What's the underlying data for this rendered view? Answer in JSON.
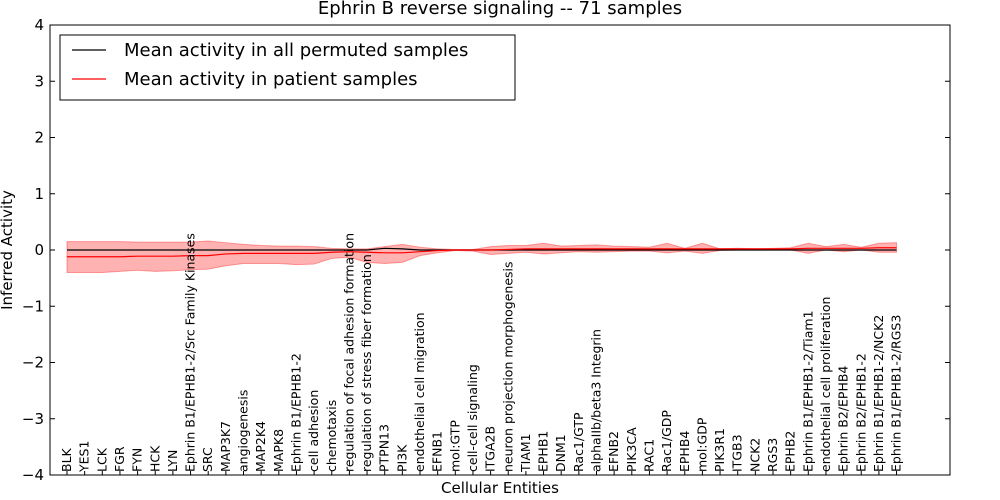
{
  "chart_data": {
    "type": "line",
    "title": "Ephrin B reverse signaling -- 71 samples",
    "xlabel": "Cellular Entities",
    "ylabel": "Inferred Activity",
    "ylim": [
      -4,
      4
    ],
    "yticks": [
      -4,
      -3,
      -2,
      -1,
      0,
      1,
      2,
      3,
      4
    ],
    "legend_position": "top-left",
    "grid": false,
    "categories": [
      "BLK",
      "YES1",
      "LCK",
      "FGR",
      "FYN",
      "HCK",
      "LYN",
      "Ephrin B1/EPHB1-2/Src Family Kinases",
      "SRC",
      "MAP3K7",
      "angiogenesis",
      "MAP2K4",
      "MAPK8",
      "Ephrin B1/EPHB1-2",
      "cell adhesion",
      "chemotaxis",
      "regulation of focal adhesion formation",
      "regulation of stress fiber formation",
      "PTPN13",
      "PI3K",
      "endothelial cell migration",
      "EFNB1",
      "mol:GTP",
      "cell-cell signaling",
      "ITGA2B",
      "neuron projection morphogenesis",
      "TIAM1",
      "EPHB1",
      "DNM1",
      "Rac1/GTP",
      "alphaIIb/beta3 Integrin",
      "EFNB2",
      "PIK3CA",
      "RAC1",
      "Rac1/GDP",
      "EPHB4",
      "mol:GDP",
      "PIK3R1",
      "ITGB3",
      "NCK2",
      "RGS3",
      "EPHB2",
      "Ephrin B1/EPHB1-2/Tiam1",
      "endothelial cell proliferation",
      "Ephrin B2/EPHB4",
      "Ephrin B2/EPHB1-2",
      "Ephrin B1/EPHB1-2/NCK2",
      "Ephrin B1/EPHB1-2/RGS3"
    ],
    "series": [
      {
        "name": "Mean activity in all permuted samples",
        "color": "#000000",
        "values": [
          0,
          0,
          0,
          0,
          0,
          0,
          0,
          0,
          0,
          0,
          0,
          0,
          0,
          0,
          0,
          0,
          0,
          0,
          0.03,
          0.02,
          0,
          0,
          0,
          0,
          0,
          0,
          0,
          0,
          0,
          0,
          0,
          0,
          0,
          0,
          0,
          0,
          0,
          0,
          0,
          0,
          0,
          0,
          0,
          0,
          0,
          0,
          0,
          0
        ]
      },
      {
        "name": "Mean activity in patient samples",
        "color": "#ff0000",
        "values": [
          -0.12,
          -0.12,
          -0.12,
          -0.12,
          -0.11,
          -0.11,
          -0.11,
          -0.1,
          -0.1,
          -0.07,
          -0.06,
          -0.06,
          -0.06,
          -0.06,
          -0.06,
          -0.04,
          -0.03,
          -0.04,
          -0.05,
          -0.05,
          -0.03,
          -0.01,
          0,
          0,
          0,
          0.01,
          0.02,
          0.02,
          0.02,
          0.02,
          0.02,
          0.02,
          0.02,
          0.02,
          0.02,
          0.02,
          0.02,
          0.02,
          0.02,
          0.02,
          0.02,
          0.02,
          0.03,
          0.03,
          0.03,
          0.03,
          0.04,
          0.04
        ]
      }
    ],
    "band": {
      "color": "#ff0000",
      "upper": [
        0.15,
        0.15,
        0.15,
        0.15,
        0.14,
        0.14,
        0.14,
        0.14,
        0.16,
        0.13,
        0.1,
        0.08,
        0.07,
        0.07,
        0.06,
        0.03,
        0.02,
        0.02,
        0.06,
        0.1,
        0.05,
        0.02,
        0.01,
        0.01,
        0.06,
        0.08,
        0.08,
        0.12,
        0.07,
        0.08,
        0.09,
        0.07,
        0.06,
        0.05,
        0.12,
        0.03,
        0.12,
        0.02,
        0.03,
        0.02,
        0.03,
        0.04,
        0.12,
        0.06,
        0.1,
        0.05,
        0.12,
        0.13
      ],
      "lower": [
        -0.4,
        -0.4,
        -0.4,
        -0.38,
        -0.36,
        -0.38,
        -0.37,
        -0.35,
        -0.34,
        -0.28,
        -0.24,
        -0.24,
        -0.24,
        -0.26,
        -0.25,
        -0.15,
        -0.13,
        -0.22,
        -0.24,
        -0.22,
        -0.1,
        -0.05,
        -0.01,
        -0.02,
        -0.08,
        -0.06,
        -0.04,
        -0.07,
        -0.05,
        -0.03,
        -0.04,
        -0.03,
        -0.02,
        -0.02,
        -0.05,
        -0.02,
        -0.06,
        -0.01,
        0,
        0,
        0,
        0,
        -0.06,
        0,
        -0.03,
        0,
        -0.04,
        -0.04
      ]
    }
  }
}
